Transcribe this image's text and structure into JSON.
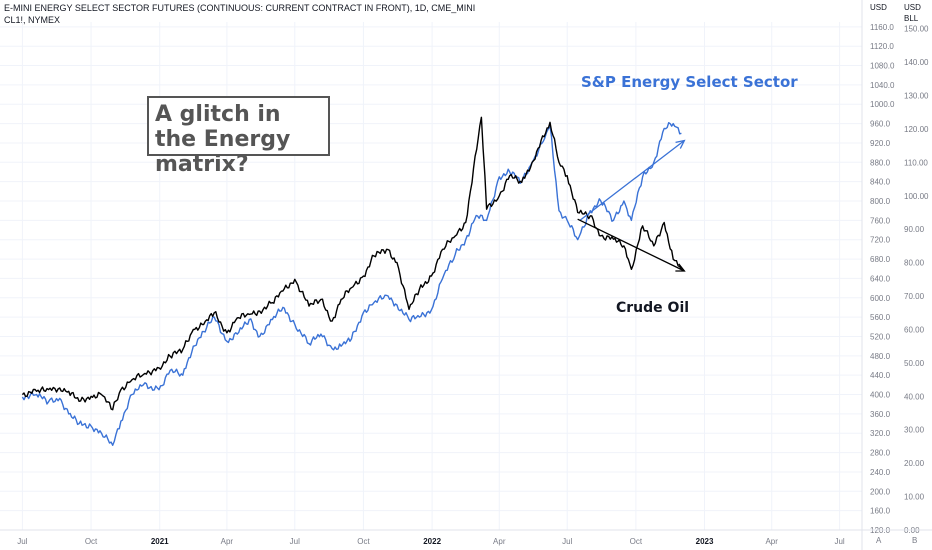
{
  "header": {
    "title": "E-MINI ENERGY SELECT SECTOR FUTURES (CONTINUOUS: CURRENT CONTRACT IN FRONT), 1D, CME_MINI",
    "subtitle": "CL1!, NYMEX"
  },
  "left_axis": {
    "unit": "USD",
    "ticks": [
      "1160.0",
      "1120.0",
      "1080.0",
      "1040.0",
      "1000.0",
      "960.0",
      "920.0",
      "880.0",
      "840.0",
      "800.0",
      "760.0",
      "720.0",
      "680.0",
      "640.0",
      "600.0",
      "560.0",
      "520.0",
      "480.0",
      "440.0",
      "400.0",
      "360.0",
      "320.0",
      "280.0",
      "240.0",
      "200.0",
      "160.0",
      "120.0"
    ]
  },
  "right_axis": {
    "unit": "USD",
    "unit2": "BLL",
    "ticks": [
      "150.00",
      "140.00",
      "130.00",
      "120.00",
      "110.00",
      "100.00",
      "90.00",
      "80.00",
      "70.00",
      "60.00",
      "50.00",
      "40.00",
      "30.00",
      "20.00",
      "10.00",
      "0.00"
    ]
  },
  "x_axis": {
    "ticks": [
      {
        "label": "Jul",
        "bold": false
      },
      {
        "label": "Oct",
        "bold": false
      },
      {
        "label": "2021",
        "bold": true
      },
      {
        "label": "Apr",
        "bold": false
      },
      {
        "label": "Jul",
        "bold": false
      },
      {
        "label": "Oct",
        "bold": false
      },
      {
        "label": "2022",
        "bold": true
      },
      {
        "label": "Apr",
        "bold": false
      },
      {
        "label": "Jul",
        "bold": false
      },
      {
        "label": "Oct",
        "bold": false
      },
      {
        "label": "2023",
        "bold": true
      },
      {
        "label": "Apr",
        "bold": false
      },
      {
        "label": "Jul",
        "bold": false
      }
    ]
  },
  "annotations": {
    "question": "A glitch in the Energy matrix?",
    "energy_label": "S&P Energy Select Sector",
    "oil_label": "Crude Oil"
  },
  "corner_buttons": {
    "a": "A",
    "b": "B"
  },
  "colors": {
    "energy": "#3a72d6",
    "oil": "#000000",
    "grid": "#f0f3fa"
  },
  "chart_data": {
    "type": "line",
    "left_ylim": [
      120,
      1170
    ],
    "right_ylim": [
      0,
      152
    ],
    "series": [
      {
        "name": "S&P Energy Select Sector",
        "axis": "left",
        "points": [
          [
            "2020-07-01",
            395
          ],
          [
            "2020-07-20",
            400
          ],
          [
            "2020-08-05",
            385
          ],
          [
            "2020-08-20",
            392
          ],
          [
            "2020-09-01",
            360
          ],
          [
            "2020-09-15",
            340
          ],
          [
            "2020-10-01",
            335
          ],
          [
            "2020-10-15",
            320
          ],
          [
            "2020-10-30",
            295
          ],
          [
            "2020-11-10",
            345
          ],
          [
            "2020-11-25",
            400
          ],
          [
            "2020-12-10",
            420
          ],
          [
            "2020-12-31",
            410
          ],
          [
            "2021-01-15",
            450
          ],
          [
            "2021-02-01",
            440
          ],
          [
            "2021-02-15",
            500
          ],
          [
            "2021-03-01",
            530
          ],
          [
            "2021-03-15",
            560
          ],
          [
            "2021-04-01",
            510
          ],
          [
            "2021-04-15",
            525
          ],
          [
            "2021-05-01",
            555
          ],
          [
            "2021-05-15",
            520
          ],
          [
            "2021-06-01",
            555
          ],
          [
            "2021-06-15",
            580
          ],
          [
            "2021-07-01",
            545
          ],
          [
            "2021-07-20",
            505
          ],
          [
            "2021-08-05",
            525
          ],
          [
            "2021-08-20",
            495
          ],
          [
            "2021-09-01",
            500
          ],
          [
            "2021-09-15",
            515
          ],
          [
            "2021-10-01",
            570
          ],
          [
            "2021-10-15",
            590
          ],
          [
            "2021-11-01",
            605
          ],
          [
            "2021-11-15",
            585
          ],
          [
            "2021-12-01",
            555
          ],
          [
            "2021-12-15",
            560
          ],
          [
            "2021-12-31",
            575
          ],
          [
            "2022-01-15",
            640
          ],
          [
            "2022-02-01",
            690
          ],
          [
            "2022-02-15",
            720
          ],
          [
            "2022-03-01",
            770
          ],
          [
            "2022-03-15",
            760
          ],
          [
            "2022-04-01",
            850
          ],
          [
            "2022-04-15",
            860
          ],
          [
            "2022-05-01",
            840
          ],
          [
            "2022-05-15",
            880
          ],
          [
            "2022-06-01",
            930
          ],
          [
            "2022-06-08",
            955
          ],
          [
            "2022-06-20",
            780
          ],
          [
            "2022-07-01",
            760
          ],
          [
            "2022-07-15",
            720
          ],
          [
            "2022-08-01",
            780
          ],
          [
            "2022-08-15",
            800
          ],
          [
            "2022-09-01",
            760
          ],
          [
            "2022-09-15",
            800
          ],
          [
            "2022-09-25",
            760
          ],
          [
            "2022-10-10",
            850
          ],
          [
            "2022-10-25",
            880
          ],
          [
            "2022-11-08",
            950
          ],
          [
            "2022-11-20",
            960
          ],
          [
            "2022-12-01",
            940
          ]
        ]
      },
      {
        "name": "Crude Oil",
        "axis": "right",
        "points": [
          [
            "2020-07-01",
            40.5
          ],
          [
            "2020-07-20",
            41.5
          ],
          [
            "2020-08-05",
            42.0
          ],
          [
            "2020-08-20",
            42.5
          ],
          [
            "2020-09-01",
            41.5
          ],
          [
            "2020-09-15",
            38.5
          ],
          [
            "2020-10-01",
            40.0
          ],
          [
            "2020-10-15",
            40.5
          ],
          [
            "2020-10-30",
            36.0
          ],
          [
            "2020-11-10",
            42.0
          ],
          [
            "2020-11-25",
            45.0
          ],
          [
            "2020-12-10",
            46.5
          ],
          [
            "2020-12-31",
            48.5
          ],
          [
            "2021-01-15",
            52.0
          ],
          [
            "2021-02-01",
            54.0
          ],
          [
            "2021-02-15",
            60.0
          ],
          [
            "2021-03-01",
            61.5
          ],
          [
            "2021-03-15",
            65.0
          ],
          [
            "2021-04-01",
            59.0
          ],
          [
            "2021-04-15",
            63.5
          ],
          [
            "2021-05-01",
            64.5
          ],
          [
            "2021-05-15",
            65.5
          ],
          [
            "2021-06-01",
            68.0
          ],
          [
            "2021-06-15",
            71.5
          ],
          [
            "2021-07-01",
            75.0
          ],
          [
            "2021-07-20",
            67.0
          ],
          [
            "2021-08-05",
            69.0
          ],
          [
            "2021-08-20",
            62.5
          ],
          [
            "2021-09-01",
            69.0
          ],
          [
            "2021-09-15",
            72.5
          ],
          [
            "2021-10-01",
            76.0
          ],
          [
            "2021-10-15",
            82.0
          ],
          [
            "2021-11-01",
            84.0
          ],
          [
            "2021-11-15",
            80.0
          ],
          [
            "2021-12-01",
            66.0
          ],
          [
            "2021-12-15",
            72.0
          ],
          [
            "2021-12-31",
            76.0
          ],
          [
            "2022-01-15",
            84.0
          ],
          [
            "2022-02-01",
            88.0
          ],
          [
            "2022-02-15",
            92.0
          ],
          [
            "2022-03-08",
            123.5
          ],
          [
            "2022-03-15",
            96.0
          ],
          [
            "2022-04-01",
            100.0
          ],
          [
            "2022-04-15",
            106.0
          ],
          [
            "2022-05-01",
            104.0
          ],
          [
            "2022-05-15",
            110.0
          ],
          [
            "2022-06-08",
            122.0
          ],
          [
            "2022-06-20",
            110.0
          ],
          [
            "2022-07-01",
            106.0
          ],
          [
            "2022-07-15",
            95.0
          ],
          [
            "2022-08-01",
            94.0
          ],
          [
            "2022-08-15",
            88.0
          ],
          [
            "2022-09-01",
            87.0
          ],
          [
            "2022-09-15",
            85.0
          ],
          [
            "2022-09-25",
            78.0
          ],
          [
            "2022-10-10",
            91.0
          ],
          [
            "2022-10-25",
            85.0
          ],
          [
            "2022-11-08",
            92.0
          ],
          [
            "2022-11-20",
            81.0
          ],
          [
            "2022-12-01",
            78.0
          ]
        ]
      }
    ],
    "trend_lines": [
      {
        "name": "energy-trend",
        "color": "#3a72d6",
        "axis": "left",
        "from": [
          "2022-07-18",
          760
        ],
        "to": [
          "2022-12-05",
          925
        ]
      },
      {
        "name": "oil-trend",
        "color": "#000000",
        "axis": "right",
        "from": [
          "2022-07-15",
          93.0
        ],
        "to": [
          "2022-12-05",
          77.5
        ]
      }
    ],
    "grid": true
  }
}
